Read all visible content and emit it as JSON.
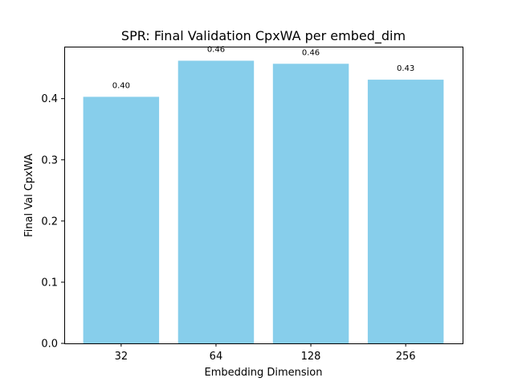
{
  "chart_data": {
    "type": "bar",
    "title": "SPR: Final Validation CpxWA per embed_dim",
    "xlabel": "Embedding Dimension",
    "ylabel": "Final Val CpxWA",
    "categories": [
      "32",
      "64",
      "128",
      "256"
    ],
    "values": [
      0.403,
      0.462,
      0.457,
      0.431
    ],
    "data_labels": [
      "0.40",
      "0.46",
      "0.46",
      "0.43"
    ],
    "ylim": [
      0,
      0.485
    ],
    "yticks": [
      0.0,
      0.1,
      0.2,
      0.3,
      0.4
    ],
    "ytick_labels": [
      "0.0",
      "0.1",
      "0.2",
      "0.3",
      "0.4"
    ],
    "bar_color": "#87ceeb",
    "grid": false,
    "legend": "none"
  }
}
